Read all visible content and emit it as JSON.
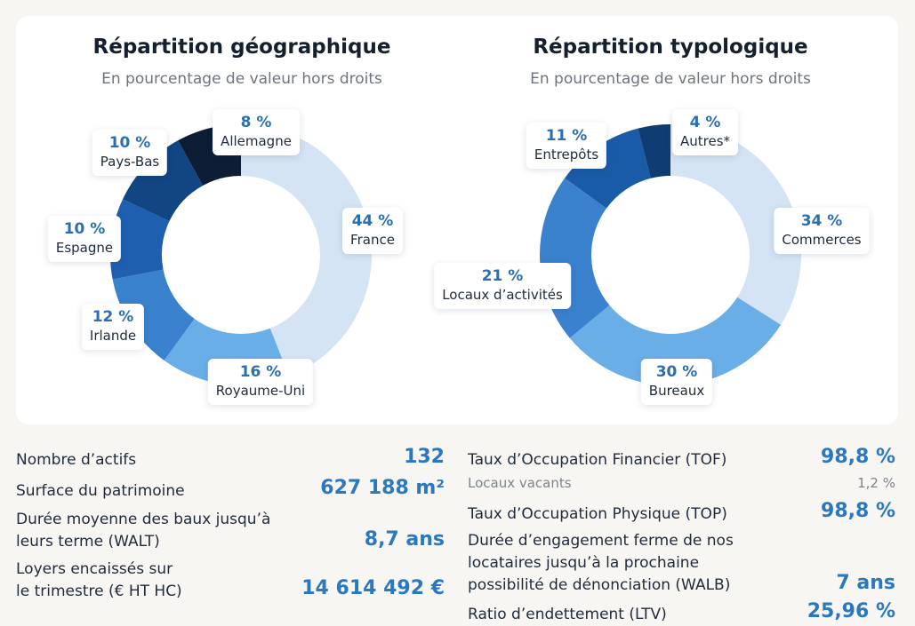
{
  "charts": {
    "geo": {
      "title": "Répartition géographique",
      "subtitle": "En pourcentage de valeur hors droits"
    },
    "typo": {
      "title": "Répartition typologique",
      "subtitle": "En pourcentage de valeur hors droits"
    }
  },
  "chart_data": [
    {
      "type": "pie",
      "variant": "donut",
      "title": "Répartition géographique",
      "subtitle": "En pourcentage de valeur hors droits",
      "slices": [
        {
          "label": "France",
          "value": 44,
          "value_label": "44 %",
          "color": "#d4e4f5"
        },
        {
          "label": "Royaume-Uni",
          "value": 16,
          "value_label": "16 %",
          "color": "#6aaee8"
        },
        {
          "label": "Irlande",
          "value": 12,
          "value_label": "12 %",
          "color": "#3a82cd"
        },
        {
          "label": "Espagne",
          "value": 10,
          "value_label": "10 %",
          "color": "#1f5fb0"
        },
        {
          "label": "Pays-Bas",
          "value": 10,
          "value_label": "10 %",
          "color": "#114682"
        },
        {
          "label": "Allemagne",
          "value": 8,
          "value_label": "8 %",
          "color": "#0d1d35"
        }
      ]
    },
    {
      "type": "pie",
      "variant": "donut",
      "title": "Répartition typologique",
      "subtitle": "En pourcentage de valeur hors droits",
      "slices": [
        {
          "label": "Commerces",
          "value": 34,
          "value_label": "34 %",
          "color": "#d4e4f5"
        },
        {
          "label": "Bureaux",
          "value": 30,
          "value_label": "30 %",
          "color": "#6aaee8"
        },
        {
          "label": "Locaux d’activités",
          "value": 21,
          "value_label": "21 %",
          "color": "#3a82cd"
        },
        {
          "label": "Entrepôts",
          "value": 11,
          "value_label": "11 %",
          "color": "#1a5ba8"
        },
        {
          "label": "Autres*",
          "value": 4,
          "value_label": "4 %",
          "color": "#0f3d73"
        }
      ]
    }
  ],
  "stats_left": [
    {
      "label": "Nombre d’actifs",
      "value": "132"
    },
    {
      "label": "Surface du patrimoine",
      "value": "627 188 m²"
    },
    {
      "label_lines": [
        "Durée moyenne des baux jusqu’à",
        "leurs terme (WALT)"
      ],
      "value": "8,7 ans"
    },
    {
      "label_lines": [
        "Loyers encaissés sur",
        "le trimestre (€ HT HC)"
      ],
      "value": "14 614 492 €"
    }
  ],
  "stats_right": [
    {
      "label": "Taux d’Occupation Financier (TOF)",
      "value": "98,8 %",
      "sub_label": "Locaux vacants",
      "sub_value": "1,2 %"
    },
    {
      "label": "Taux d’Occupation Physique (TOP)",
      "value": "98,8 %"
    },
    {
      "label_lines": [
        "Durée d’engagement ferme de nos",
        "locataires jusqu’à la prochaine",
        "possibilité de dénonciation (WALB)"
      ],
      "value": "7 ans"
    },
    {
      "label": "Ratio d’endettement (LTV)",
      "value": "25,96 %"
    }
  ]
}
